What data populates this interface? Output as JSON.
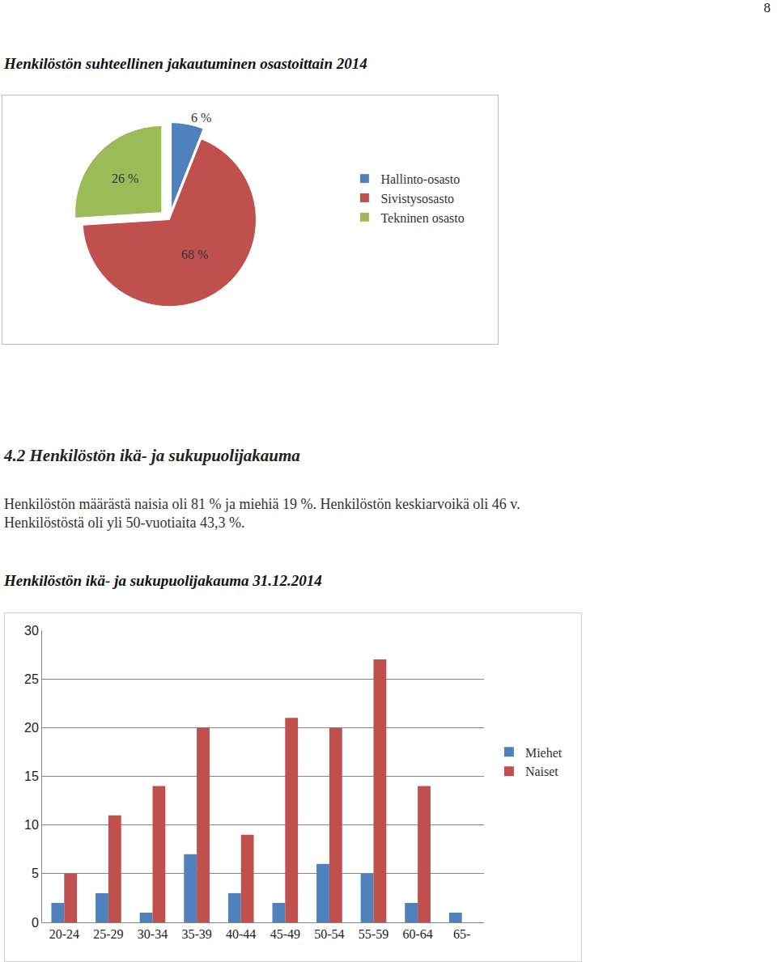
{
  "page_number": "8",
  "heading": "4.2 Henkilöstön ikä- ja sukupuolijakauma",
  "paragraph_lines": [
    "Henkilöstön määrästä naisia oli 81 % ja miehiä 19 %. Henkilöstön keskiarvoikä oli 46 v.",
    "Henkilöstöstä oli yli 50-vuotiaita 43,3 %."
  ],
  "chart_data": [
    {
      "type": "pie",
      "title": "Henkilöstön suhteellinen jakautuminen osastoittain 2014",
      "categories": [
        "Hallinto-osasto",
        "Sivistysosasto",
        "Tekninen osasto"
      ],
      "values": [
        6,
        68,
        26
      ],
      "value_labels": [
        "6 %",
        "68 %",
        "26 %"
      ],
      "colors": [
        "#4f81bd",
        "#c0504d",
        "#9bbb59"
      ],
      "data_labels": true,
      "legend": "right"
    },
    {
      "type": "bar",
      "title": "Henkilöstön ikä- ja sukupuolijakauma 31.12.2014",
      "categories": [
        "20-24",
        "25-29",
        "30-34",
        "35-39",
        "40-44",
        "45-49",
        "50-54",
        "55-59",
        "60-64",
        "65-"
      ],
      "series": [
        {
          "name": "Miehet",
          "color": "#4f81bd",
          "values": [
            2,
            3,
            1,
            7,
            3,
            2,
            6,
            5,
            2,
            1
          ]
        },
        {
          "name": "Naiset",
          "color": "#c0504d",
          "values": [
            5,
            11,
            14,
            20,
            9,
            21,
            20,
            27,
            14,
            null
          ]
        }
      ],
      "ylim": [
        0,
        30
      ],
      "yticks": [
        0,
        5,
        10,
        15,
        20,
        25,
        30
      ],
      "grid": true,
      "legend": "right"
    }
  ]
}
